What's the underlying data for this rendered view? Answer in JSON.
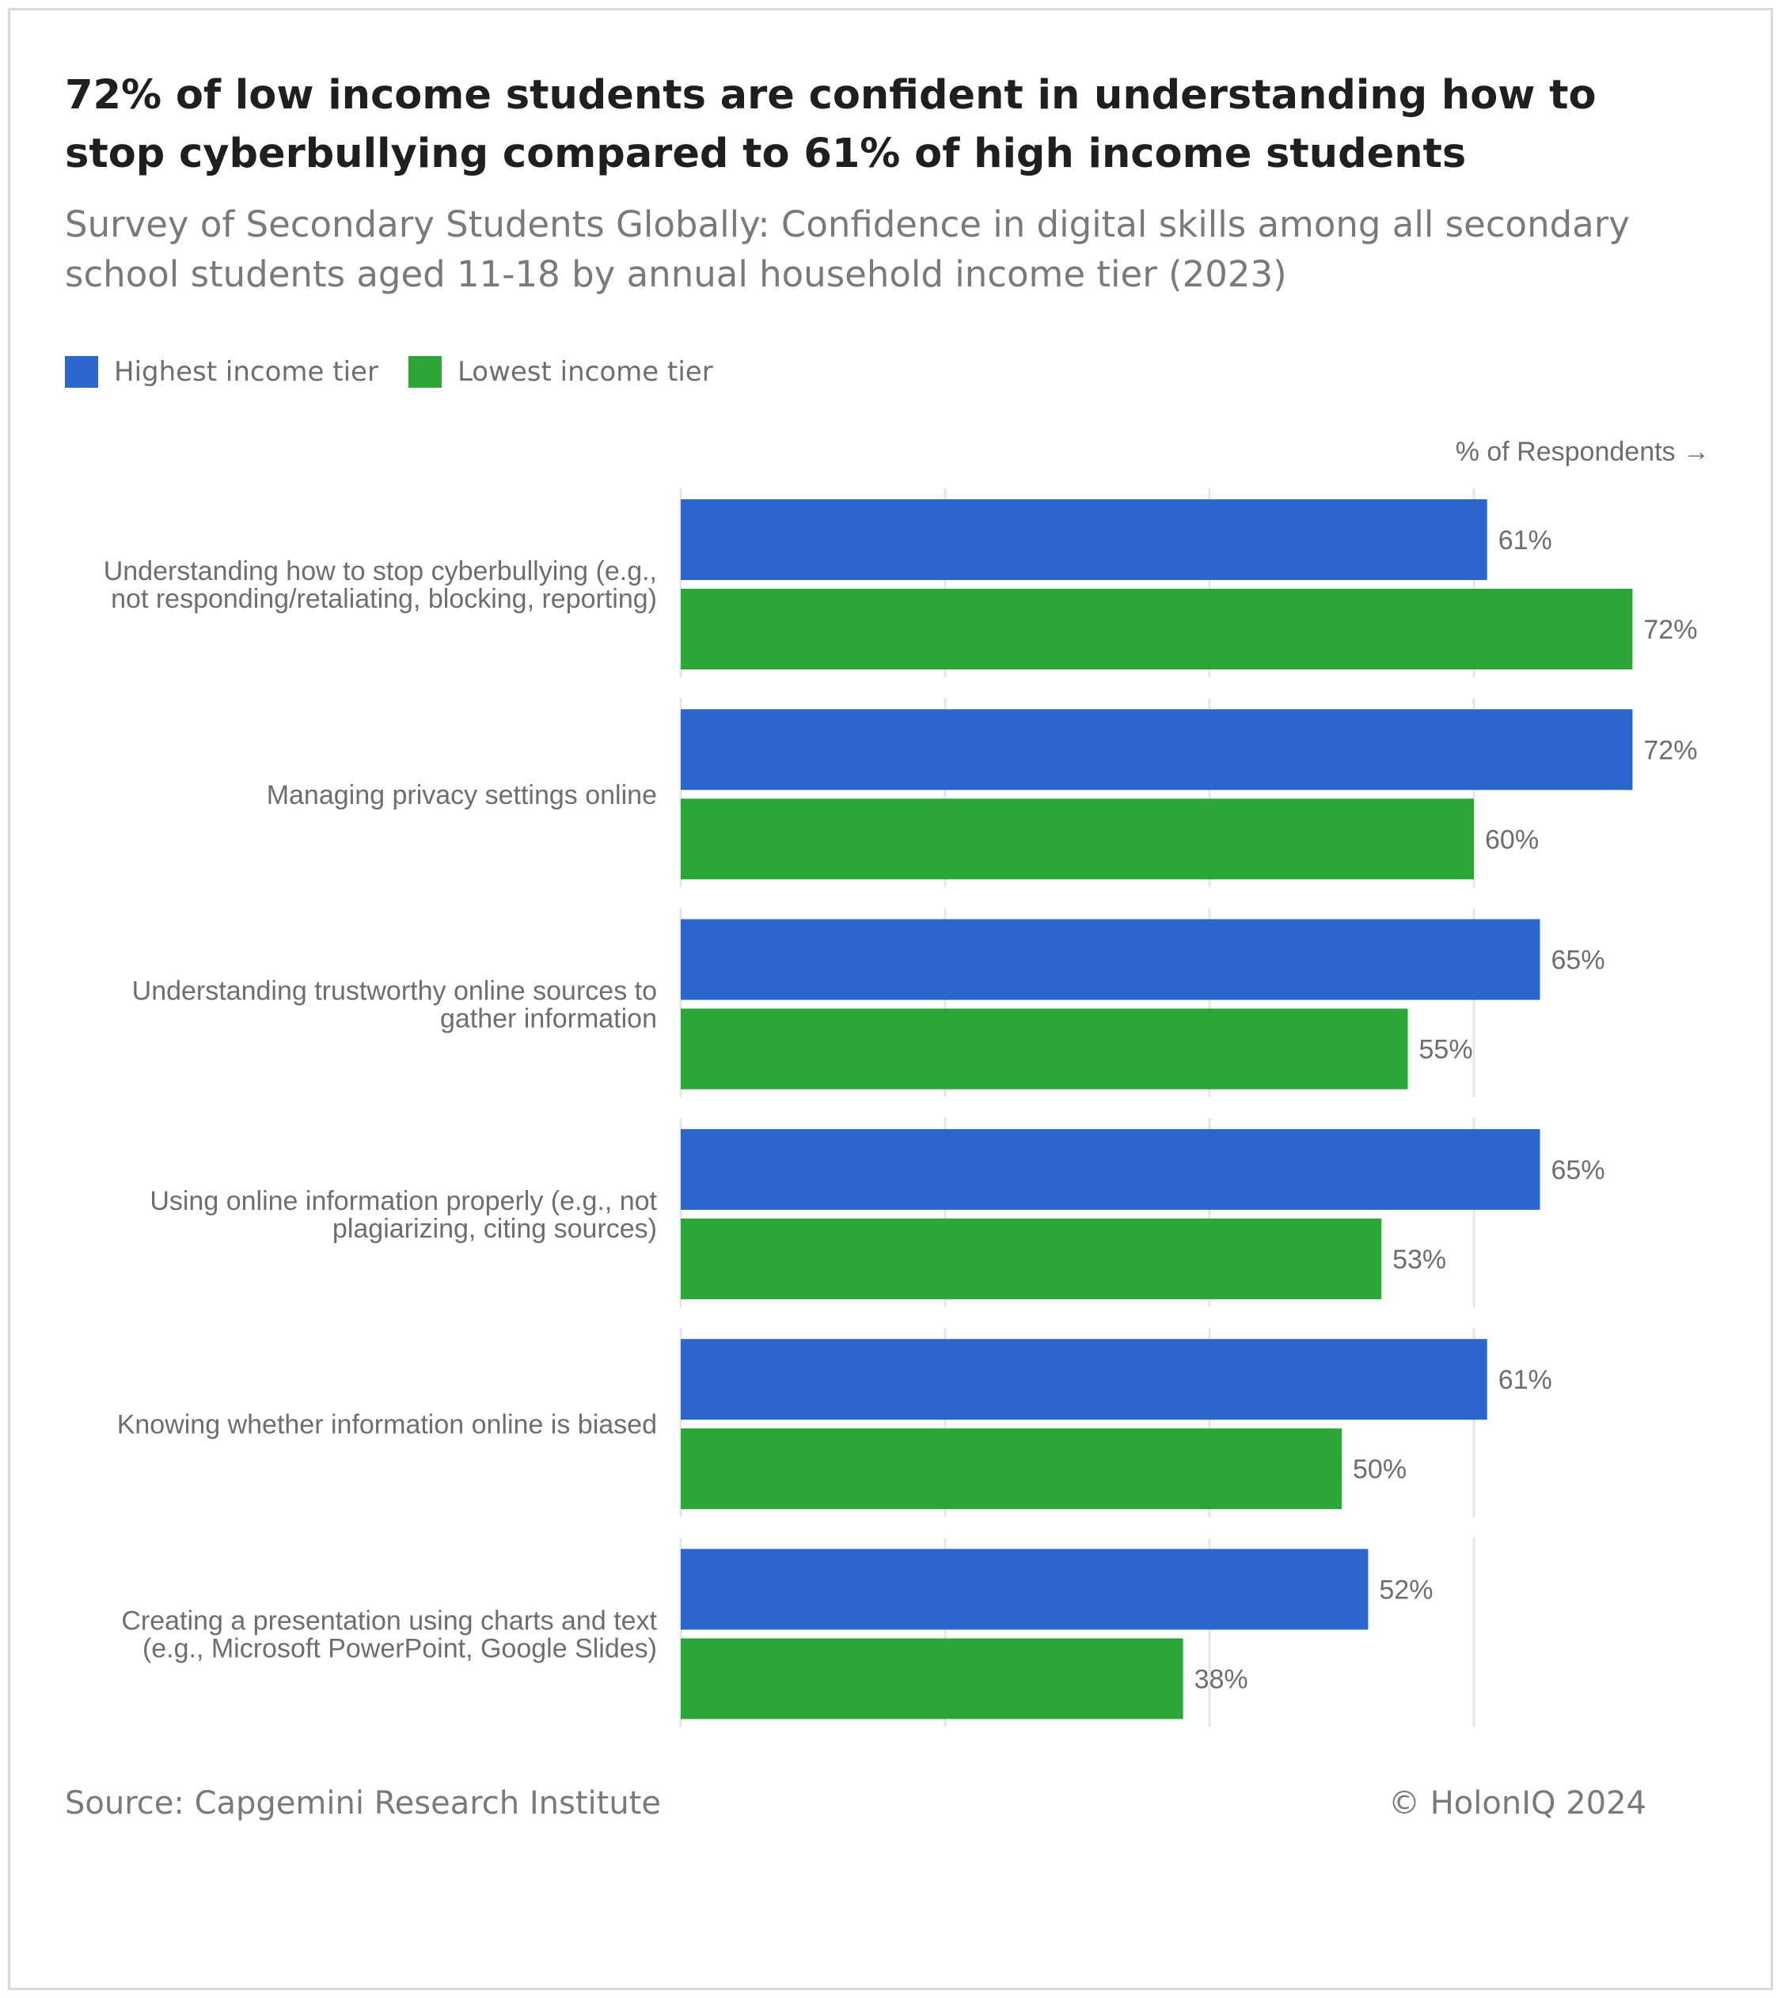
{
  "header": {
    "title": "72% of low income students are confident in understanding how to stop cyberbullying compared to 61% of high income students",
    "subtitle": "Survey of Secondary Students Globally: Confidence in digital skills among all secondary school students aged 11-18 by annual household income tier (2023)"
  },
  "legend": {
    "items": [
      {
        "label": "Highest income tier",
        "color": "#2a66cc"
      },
      {
        "label": "Lowest income tier",
        "color": "#2ca637"
      }
    ]
  },
  "axis_note": "% of Respondents →",
  "footer": {
    "source": "Source: Capgemini Research Institute",
    "copyright": "© HolonIQ 2024"
  },
  "chart_data": {
    "type": "bar",
    "orientation": "horizontal",
    "title": "72% of low income students are confident in understanding how to stop cyberbullying compared to 61% of high income students",
    "subtitle": "Survey of Secondary Students Globally: Confidence in digital skills among all secondary school students aged 11-18 by annual household income tier (2023)",
    "xlabel": "% of Respondents →",
    "ylabel": "",
    "xlim": [
      0,
      75
    ],
    "grid": true,
    "gridlines_at": [
      0,
      20,
      40,
      60
    ],
    "legend_position": "top-left",
    "value_suffix": "%",
    "categories": [
      [
        "Understanding how to stop cyberbullying (e.g.,",
        "not responding/retaliating, blocking, reporting)"
      ],
      [
        "Managing privacy settings online"
      ],
      [
        "Understanding trustworthy online sources to",
        "gather information"
      ],
      [
        "Using online information properly (e.g., not",
        "plagiarizing, citing sources)"
      ],
      [
        "Knowing whether information online is biased"
      ],
      [
        "Creating a presentation using charts and text",
        "(e.g., Microsoft PowerPoint, Google Slides)"
      ]
    ],
    "series": [
      {
        "name": "Highest income tier",
        "color": "#2a66cc",
        "values": [
          61,
          72,
          65,
          65,
          61,
          52
        ]
      },
      {
        "name": "Lowest income tier",
        "color": "#2ca637",
        "values": [
          72,
          60,
          55,
          53,
          50,
          38
        ]
      }
    ]
  }
}
